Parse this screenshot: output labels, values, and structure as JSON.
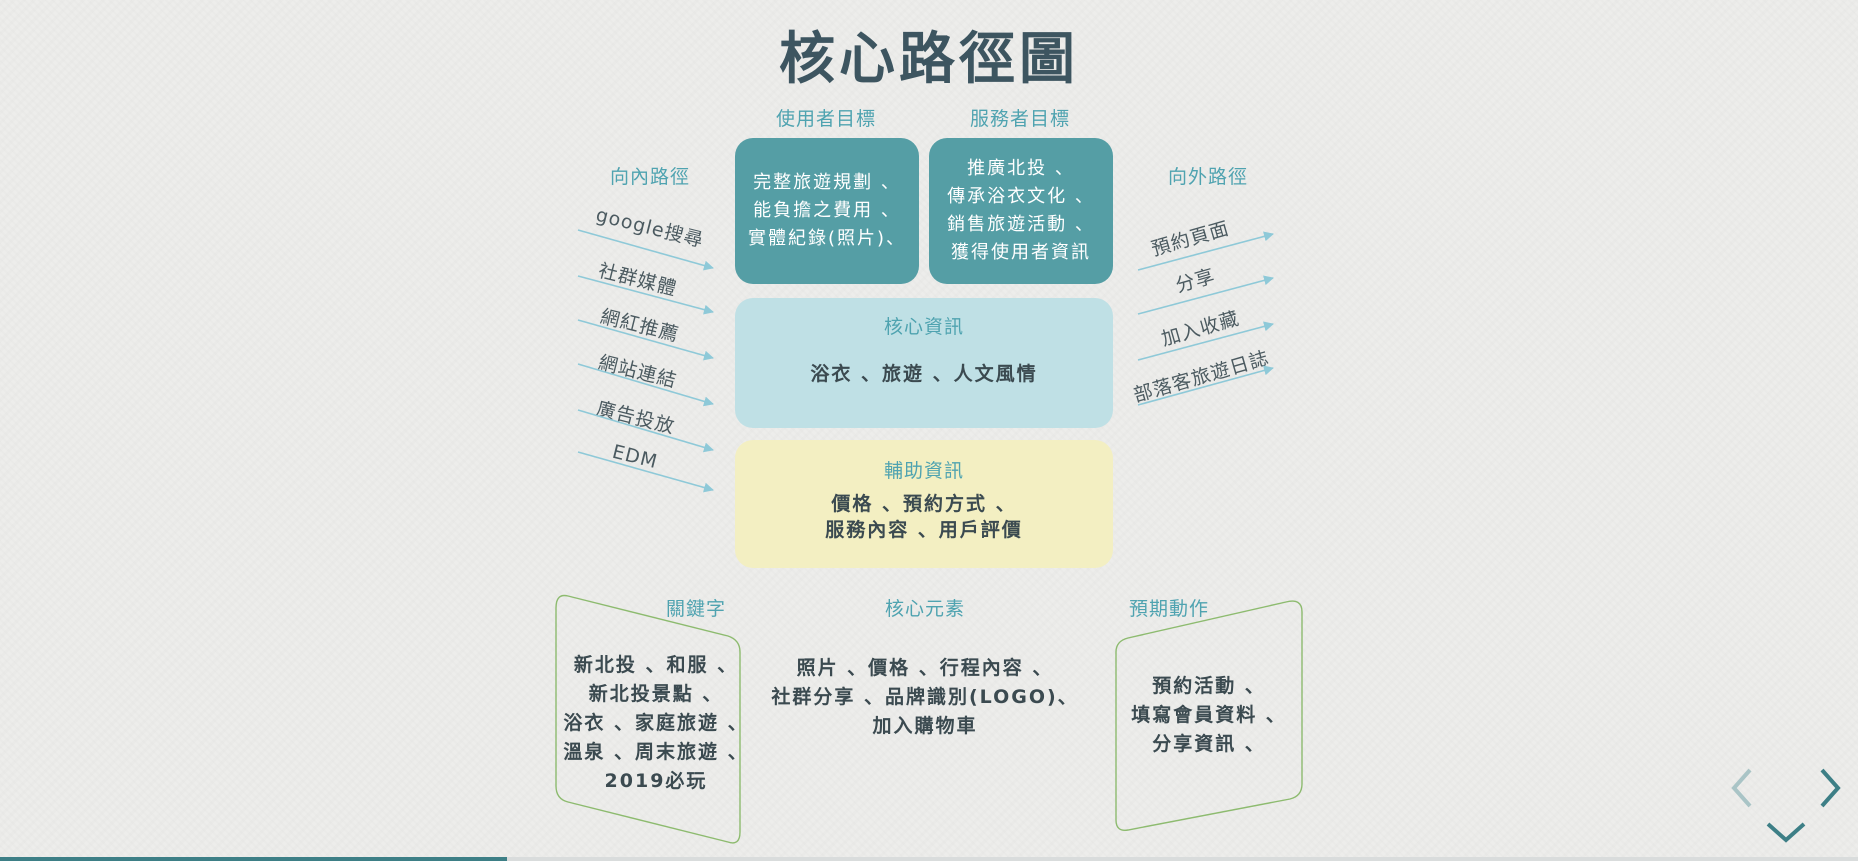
{
  "title": "核心路徑圖",
  "top_labels": {
    "user_goal": "使用者目標",
    "provider_goal": "服務者目標"
  },
  "user_goal_lines": [
    "完整旅遊規劃 、",
    "能負擔之費用 、",
    "實體紀錄(照片)、"
  ],
  "provider_goal_lines": [
    "推廣北投 、",
    "傳承浴衣文化 、",
    "銷售旅遊活動 、",
    "獲得使用者資訊"
  ],
  "inbound": {
    "label": "向內路徑",
    "items": [
      "google搜尋",
      "社群媒體",
      "網紅推薦",
      "網站連結",
      "廣告投放",
      "EDM"
    ]
  },
  "outbound": {
    "label": "向外路徑",
    "items": [
      "預約頁面",
      "分享",
      "加入收藏",
      "部落客旅遊日誌"
    ]
  },
  "core_info": {
    "heading": "核心資訊",
    "body": "浴衣 、旅遊 、人文風情"
  },
  "aux_info": {
    "heading": "輔助資訊",
    "lines": [
      "價格 、預約方式 、",
      "服務內容 、用戶評價"
    ]
  },
  "keywords": {
    "label": "關鍵字",
    "lines": [
      "新北投 、和服 、",
      "新北投景點 、",
      "浴衣 、家庭旅遊 、",
      "溫泉 、周末旅遊 、",
      "2019必玩"
    ]
  },
  "core_elements": {
    "label": "核心元素",
    "lines": [
      "照片 、價格 、行程內容 、",
      "社群分享 、品牌識別(LOGO)、",
      "加入購物車"
    ]
  },
  "expected_actions": {
    "label": "預期動作",
    "lines": [
      "預約活動 、",
      "填寫會員資料 、",
      "分享資訊 、"
    ]
  },
  "progress": 0.273,
  "colors": {
    "title": "#3d5560",
    "accent": "#4fa3b0",
    "teal_box": "#559ea5",
    "light_box": "#bfe0e5",
    "yellow_box": "#f3efc2",
    "arrow": "#8ec9d8",
    "green_border": "#8dbb6f"
  },
  "icons": {
    "prev": "chevron-left-icon",
    "next": "chevron-right-icon",
    "down": "chevron-down-icon"
  }
}
